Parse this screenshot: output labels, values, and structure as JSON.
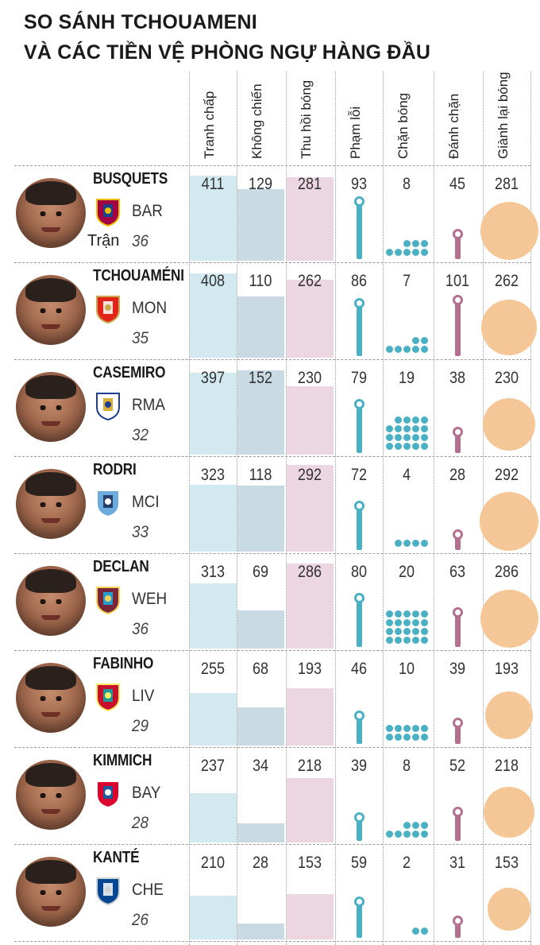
{
  "title": {
    "line1": "SO SÁNH TCHOUAMENI",
    "line2": "VÀ CÁC TIỀN VỆ PHÒNG NGỰ HÀNG ĐẦU"
  },
  "matches_label": "Trận",
  "colors": {
    "tranh_chap": "#d3e9f0",
    "khong_chien": "#c9dae3",
    "thu_hoi_bong": "#ecd6e1",
    "pham_loi": "#4ab0c4",
    "chan_bong": "#4ab0c4",
    "danh_chan": "#b4708f",
    "gianh_lai_bong": "#f6c796"
  },
  "chart_data": {
    "type": "table",
    "columns": [
      "Tranh chấp",
      "Không chiến",
      "Thu hồi bóng",
      "Phạm lỗi",
      "Chặn bóng",
      "Đánh chặn",
      "Giành lại bóng"
    ],
    "rows": [
      {
        "name": "BUSQUETS",
        "club": "BAR",
        "matches": "36",
        "values": [
          411,
          129,
          281,
          93,
          8,
          45,
          281
        ]
      },
      {
        "name": "TCHOUAMÉNI",
        "club": "MON",
        "matches": "35",
        "values": [
          408,
          110,
          262,
          86,
          7,
          101,
          262
        ]
      },
      {
        "name": "CASEMIRO",
        "club": "RMA",
        "matches": "32",
        "values": [
          397,
          152,
          230,
          79,
          19,
          38,
          230
        ]
      },
      {
        "name": "RODRI",
        "club": "MCI",
        "matches": "33",
        "values": [
          323,
          118,
          292,
          72,
          4,
          28,
          292
        ]
      },
      {
        "name": "DECLAN",
        "club": "WEH",
        "matches": "36",
        "values": [
          313,
          69,
          286,
          80,
          20,
          63,
          286
        ]
      },
      {
        "name": "FABINHO",
        "club": "LIV",
        "matches": "29",
        "values": [
          255,
          68,
          193,
          46,
          10,
          39,
          193
        ]
      },
      {
        "name": "KIMMICH",
        "club": "BAY",
        "matches": "28",
        "values": [
          237,
          34,
          218,
          39,
          8,
          52,
          218
        ]
      },
      {
        "name": "KANTÉ",
        "club": "CHE",
        "matches": "26",
        "values": [
          210,
          28,
          153,
          59,
          2,
          31,
          153
        ]
      }
    ]
  }
}
